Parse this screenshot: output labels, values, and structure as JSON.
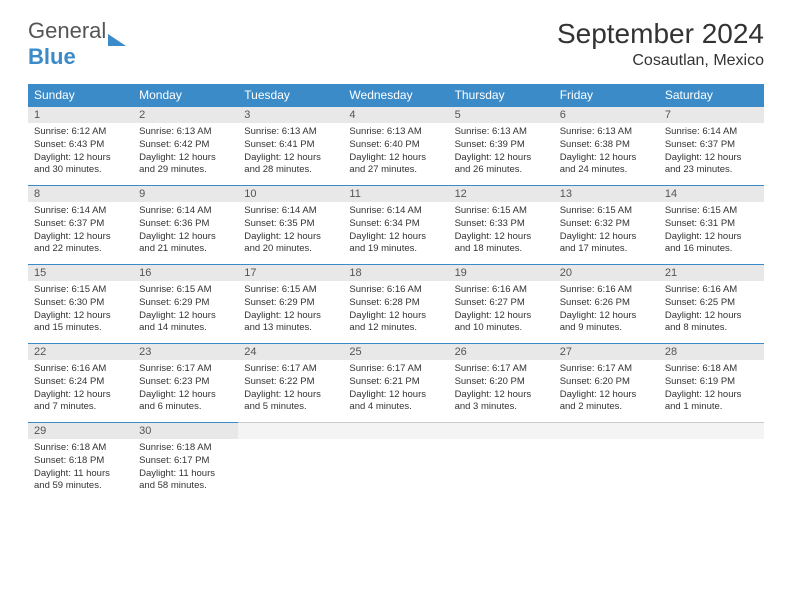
{
  "brand": {
    "name1": "General",
    "name2": "Blue"
  },
  "title": "September 2024",
  "location": "Cosautlan, Mexico",
  "colors": {
    "accent": "#3b8bc9",
    "dayHeaderBg": "#e8e8e8",
    "text": "#333333"
  },
  "weekdays": [
    "Sunday",
    "Monday",
    "Tuesday",
    "Wednesday",
    "Thursday",
    "Friday",
    "Saturday"
  ],
  "layout": {
    "firstWeekday": 0,
    "daysInMonth": 30,
    "rows": 5
  },
  "days": [
    {
      "n": 1,
      "sunrise": "6:12 AM",
      "sunset": "6:43 PM",
      "daylight": "12 hours and 30 minutes."
    },
    {
      "n": 2,
      "sunrise": "6:13 AM",
      "sunset": "6:42 PM",
      "daylight": "12 hours and 29 minutes."
    },
    {
      "n": 3,
      "sunrise": "6:13 AM",
      "sunset": "6:41 PM",
      "daylight": "12 hours and 28 minutes."
    },
    {
      "n": 4,
      "sunrise": "6:13 AM",
      "sunset": "6:40 PM",
      "daylight": "12 hours and 27 minutes."
    },
    {
      "n": 5,
      "sunrise": "6:13 AM",
      "sunset": "6:39 PM",
      "daylight": "12 hours and 26 minutes."
    },
    {
      "n": 6,
      "sunrise": "6:13 AM",
      "sunset": "6:38 PM",
      "daylight": "12 hours and 24 minutes."
    },
    {
      "n": 7,
      "sunrise": "6:14 AM",
      "sunset": "6:37 PM",
      "daylight": "12 hours and 23 minutes."
    },
    {
      "n": 8,
      "sunrise": "6:14 AM",
      "sunset": "6:37 PM",
      "daylight": "12 hours and 22 minutes."
    },
    {
      "n": 9,
      "sunrise": "6:14 AM",
      "sunset": "6:36 PM",
      "daylight": "12 hours and 21 minutes."
    },
    {
      "n": 10,
      "sunrise": "6:14 AM",
      "sunset": "6:35 PM",
      "daylight": "12 hours and 20 minutes."
    },
    {
      "n": 11,
      "sunrise": "6:14 AM",
      "sunset": "6:34 PM",
      "daylight": "12 hours and 19 minutes."
    },
    {
      "n": 12,
      "sunrise": "6:15 AM",
      "sunset": "6:33 PM",
      "daylight": "12 hours and 18 minutes."
    },
    {
      "n": 13,
      "sunrise": "6:15 AM",
      "sunset": "6:32 PM",
      "daylight": "12 hours and 17 minutes."
    },
    {
      "n": 14,
      "sunrise": "6:15 AM",
      "sunset": "6:31 PM",
      "daylight": "12 hours and 16 minutes."
    },
    {
      "n": 15,
      "sunrise": "6:15 AM",
      "sunset": "6:30 PM",
      "daylight": "12 hours and 15 minutes."
    },
    {
      "n": 16,
      "sunrise": "6:15 AM",
      "sunset": "6:29 PM",
      "daylight": "12 hours and 14 minutes."
    },
    {
      "n": 17,
      "sunrise": "6:15 AM",
      "sunset": "6:29 PM",
      "daylight": "12 hours and 13 minutes."
    },
    {
      "n": 18,
      "sunrise": "6:16 AM",
      "sunset": "6:28 PM",
      "daylight": "12 hours and 12 minutes."
    },
    {
      "n": 19,
      "sunrise": "6:16 AM",
      "sunset": "6:27 PM",
      "daylight": "12 hours and 10 minutes."
    },
    {
      "n": 20,
      "sunrise": "6:16 AM",
      "sunset": "6:26 PM",
      "daylight": "12 hours and 9 minutes."
    },
    {
      "n": 21,
      "sunrise": "6:16 AM",
      "sunset": "6:25 PM",
      "daylight": "12 hours and 8 minutes."
    },
    {
      "n": 22,
      "sunrise": "6:16 AM",
      "sunset": "6:24 PM",
      "daylight": "12 hours and 7 minutes."
    },
    {
      "n": 23,
      "sunrise": "6:17 AM",
      "sunset": "6:23 PM",
      "daylight": "12 hours and 6 minutes."
    },
    {
      "n": 24,
      "sunrise": "6:17 AM",
      "sunset": "6:22 PM",
      "daylight": "12 hours and 5 minutes."
    },
    {
      "n": 25,
      "sunrise": "6:17 AM",
      "sunset": "6:21 PM",
      "daylight": "12 hours and 4 minutes."
    },
    {
      "n": 26,
      "sunrise": "6:17 AM",
      "sunset": "6:20 PM",
      "daylight": "12 hours and 3 minutes."
    },
    {
      "n": 27,
      "sunrise": "6:17 AM",
      "sunset": "6:20 PM",
      "daylight": "12 hours and 2 minutes."
    },
    {
      "n": 28,
      "sunrise": "6:18 AM",
      "sunset": "6:19 PM",
      "daylight": "12 hours and 1 minute."
    },
    {
      "n": 29,
      "sunrise": "6:18 AM",
      "sunset": "6:18 PM",
      "daylight": "11 hours and 59 minutes."
    },
    {
      "n": 30,
      "sunrise": "6:18 AM",
      "sunset": "6:17 PM",
      "daylight": "11 hours and 58 minutes."
    }
  ],
  "labels": {
    "sunrise": "Sunrise:",
    "sunset": "Sunset:",
    "daylight": "Daylight:"
  }
}
